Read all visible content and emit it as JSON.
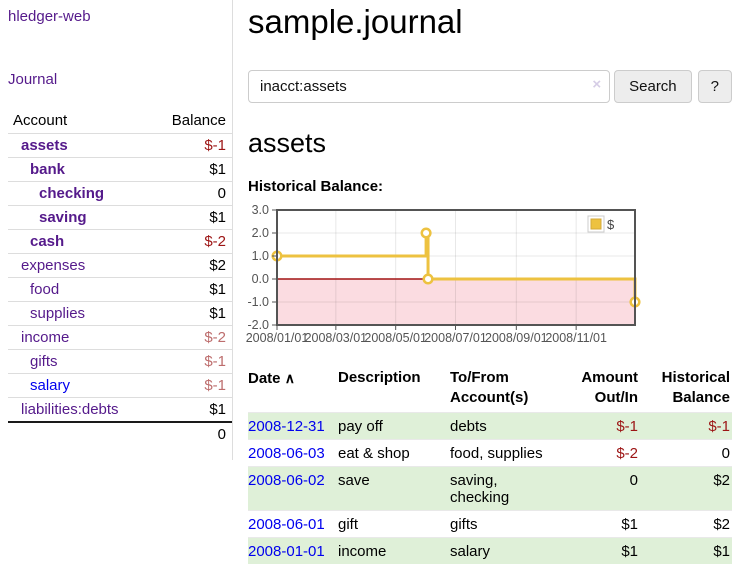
{
  "app": {
    "brand": "hledger-web",
    "nav_journal": "Journal"
  },
  "sidebar": {
    "accounts_header": {
      "account": "Account",
      "balance": "Balance"
    },
    "accounts": [
      {
        "name": "assets",
        "depth": 0,
        "in_query": true,
        "link": "purple",
        "balance": "$-1",
        "negative": true
      },
      {
        "name": "bank",
        "depth": 1,
        "in_query": true,
        "link": "purple",
        "balance": "$1",
        "negative": false
      },
      {
        "name": "checking",
        "depth": 2,
        "in_query": true,
        "link": "purple",
        "balance": "0",
        "negative": false
      },
      {
        "name": "saving",
        "depth": 2,
        "in_query": true,
        "link": "purple",
        "balance": "$1",
        "negative": false
      },
      {
        "name": "cash",
        "depth": 1,
        "in_query": true,
        "link": "purple",
        "balance": "$-2",
        "negative": true
      },
      {
        "name": "expenses",
        "depth": 0,
        "in_query": false,
        "link": "purple",
        "balance": "$2",
        "negative": false
      },
      {
        "name": "food",
        "depth": 1,
        "in_query": false,
        "link": "purple",
        "balance": "$1",
        "negative": false
      },
      {
        "name": "supplies",
        "depth": 1,
        "in_query": false,
        "link": "purple",
        "balance": "$1",
        "negative": false
      },
      {
        "name": "income",
        "depth": 0,
        "in_query": false,
        "link": "purple",
        "balance": "$-2",
        "negative": true
      },
      {
        "name": "gifts",
        "depth": 1,
        "in_query": false,
        "link": "purple",
        "balance": "$-1",
        "negative": true
      },
      {
        "name": "salary",
        "depth": 1,
        "in_query": false,
        "link": "blue",
        "balance": "$-1",
        "negative": true
      },
      {
        "name": "liabilities:debts",
        "depth": 0,
        "in_query": false,
        "link": "purple",
        "balance": "$1",
        "negative": false
      }
    ],
    "total": "0"
  },
  "header": {
    "title": "sample.journal"
  },
  "search": {
    "value": "inacct:assets",
    "clear_icon": "×",
    "button": "Search",
    "help_button": "?"
  },
  "account_page": {
    "title": "assets",
    "chart_label": "Historical Balance:"
  },
  "chart_data": {
    "type": "line",
    "step": true,
    "series": [
      {
        "name": "$",
        "color": "#edc240",
        "points": [
          {
            "x": "2008-01-01",
            "y": 1
          },
          {
            "x": "2008-06-01",
            "y": 2
          },
          {
            "x": "2008-06-03",
            "y": 0
          },
          {
            "x": "2008-12-31",
            "y": -1
          }
        ]
      }
    ],
    "xrange": [
      "2008-01-01",
      "2008-12-31"
    ],
    "ylim": [
      -2,
      3
    ],
    "yticks": [
      {
        "v": 3,
        "label": "3.0"
      },
      {
        "v": 2,
        "label": "2.0"
      },
      {
        "v": 1,
        "label": "1.0"
      },
      {
        "v": 0,
        "label": "0.0"
      },
      {
        "v": -1,
        "label": "-1.0"
      },
      {
        "v": -2,
        "label": "-2.0"
      }
    ],
    "xticks": [
      {
        "x": "2008-01-01",
        "label": "2008/01/01"
      },
      {
        "x": "2008-03-01",
        "label": "2008/03/01"
      },
      {
        "x": "2008-05-01",
        "label": "2008/05/01"
      },
      {
        "x": "2008-07-01",
        "label": "2008/07/01"
      },
      {
        "x": "2008-09-01",
        "label": "2008/09/01"
      },
      {
        "x": "2008-11-01",
        "label": "2008/11/01"
      }
    ],
    "legend": {
      "position": "top-right",
      "entries": [
        {
          "label": "$",
          "color": "#edc240"
        }
      ]
    },
    "grid": true,
    "zero_line_color": "#a21414",
    "negative_region_color": "#fbdce1",
    "border_color": "#545454",
    "tick_label_color": "#545454"
  },
  "register": {
    "sort_icon": "∧",
    "columns": [
      "Date",
      "Description",
      "To/From Account(s)",
      "Amount Out/In",
      "Historical Balance"
    ],
    "rows": [
      {
        "date": "2008-12-31",
        "description": "pay off",
        "accounts": "debts",
        "amount": "$-1",
        "amount_neg": true,
        "balance": "$-1",
        "balance_neg": true,
        "highlight": true
      },
      {
        "date": "2008-06-03",
        "description": "eat & shop",
        "accounts": "food, supplies",
        "amount": "$-2",
        "amount_neg": true,
        "balance": "0",
        "balance_neg": false,
        "highlight": false
      },
      {
        "date": "2008-06-02",
        "description": "save",
        "accounts": "saving, checking",
        "amount": "0",
        "amount_neg": false,
        "balance": "$2",
        "balance_neg": false,
        "highlight": true
      },
      {
        "date": "2008-06-01",
        "description": "gift",
        "accounts": "gifts",
        "amount": "$1",
        "amount_neg": false,
        "balance": "$2",
        "balance_neg": false,
        "highlight": false
      },
      {
        "date": "2008-01-01",
        "description": "income",
        "accounts": "salary",
        "amount": "$1",
        "amount_neg": false,
        "balance": "$1",
        "balance_neg": false,
        "highlight": true
      }
    ]
  }
}
